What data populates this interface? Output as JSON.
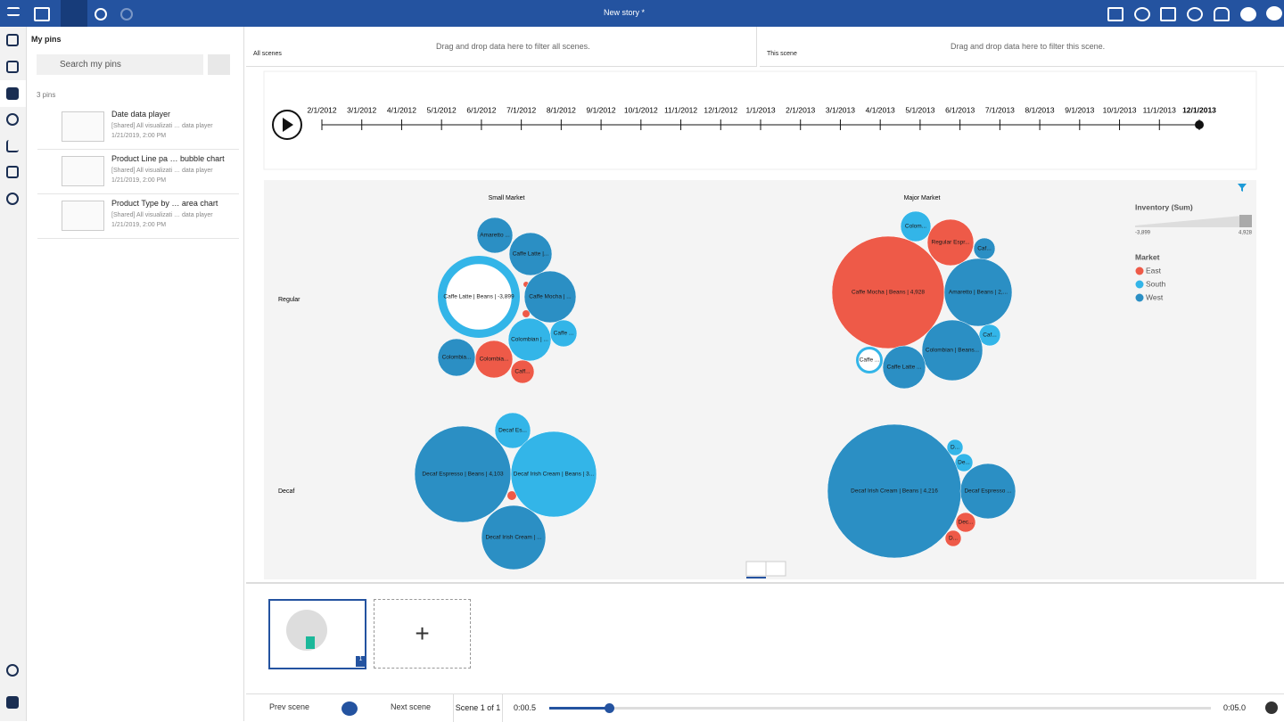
{
  "toolbar": {
    "title": "New story *"
  },
  "pins_panel": {
    "title": "My pins",
    "search_placeholder": "Search my pins",
    "count": "3 pins",
    "pins": [
      {
        "title": "Date data player",
        "source": "[Shared] All visualizati … data player",
        "date": "1/21/2019, 2:00 PM"
      },
      {
        "title": "Product Line pa … bubble chart",
        "source": "[Shared] All visualizati … data player",
        "date": "1/21/2019, 2:00 PM"
      },
      {
        "title": "Product Type by … area chart",
        "source": "[Shared] All visualizati … data player",
        "date": "1/21/2019, 2:00 PM"
      }
    ]
  },
  "filters": [
    {
      "label": "All scenes",
      "hint": "Drag and drop data here to filter all scenes."
    },
    {
      "label": "This scene",
      "hint": "Drag and drop data here to filter this scene."
    }
  ],
  "timeline": {
    "dates": [
      "2/1/2012",
      "3/1/2012",
      "4/1/2012",
      "5/1/2012",
      "6/1/2012",
      "7/1/2012",
      "8/1/2012",
      "9/1/2012",
      "10/1/2012",
      "11/1/2012",
      "12/1/2012",
      "1/1/2013",
      "2/1/2013",
      "3/1/2013",
      "4/1/2013",
      "5/1/2013",
      "6/1/2013",
      "7/1/2013",
      "8/1/2013",
      "9/1/2013",
      "10/1/2013",
      "11/1/2013",
      "12/1/2013"
    ]
  },
  "bubble_chart": {
    "columns": [
      "Small Market",
      "Major Market"
    ],
    "rows": [
      "Regular",
      "Decaf"
    ],
    "panels": [
      [
        "Amaretto ...",
        "Caffe Latte |...",
        "Caffe Latte | Beans | -3,899",
        "Caffe Mocha | ...",
        "Caffe ...",
        "Colombian | ...",
        "Colombia...",
        "Colombia...",
        "Caff..."
      ],
      [
        "Colom...",
        "Regular Espr...",
        "Caf...",
        "Caffe Mocha | Beans | 4,928",
        "Amaretto | Beans | 2,...",
        "Caf...",
        "Colombian | Beans...",
        "Caffe ...",
        "Caffe Latte ..."
      ],
      [
        "Decaf Es...",
        "Decaf Espresso | Beans | 4,103",
        "Decaf Irish Cream | Beans | 3...",
        "Decaf Irish Cream | ..."
      ],
      [
        "D...",
        "De...",
        "Decaf Irish Cream | Beans | 4,216",
        "Decaf Espresso ...",
        "Dec...",
        "D..."
      ]
    ],
    "legend": {
      "size_title": "Inventory (Sum)",
      "size_min": "-3,899",
      "size_max": "4,928",
      "color_title": "Market",
      "entries": [
        {
          "name": "East",
          "color": "#ee5a48"
        },
        {
          "name": "South",
          "color": "#33b5e8"
        },
        {
          "name": "West",
          "color": "#2b8fc4"
        }
      ]
    }
  },
  "scenes": {
    "badge": "1"
  },
  "player": {
    "prev": "Prev scene",
    "next": "Next scene",
    "scene": "Scene 1 of 1",
    "start": "0:00.5",
    "end": "0:05.0"
  }
}
